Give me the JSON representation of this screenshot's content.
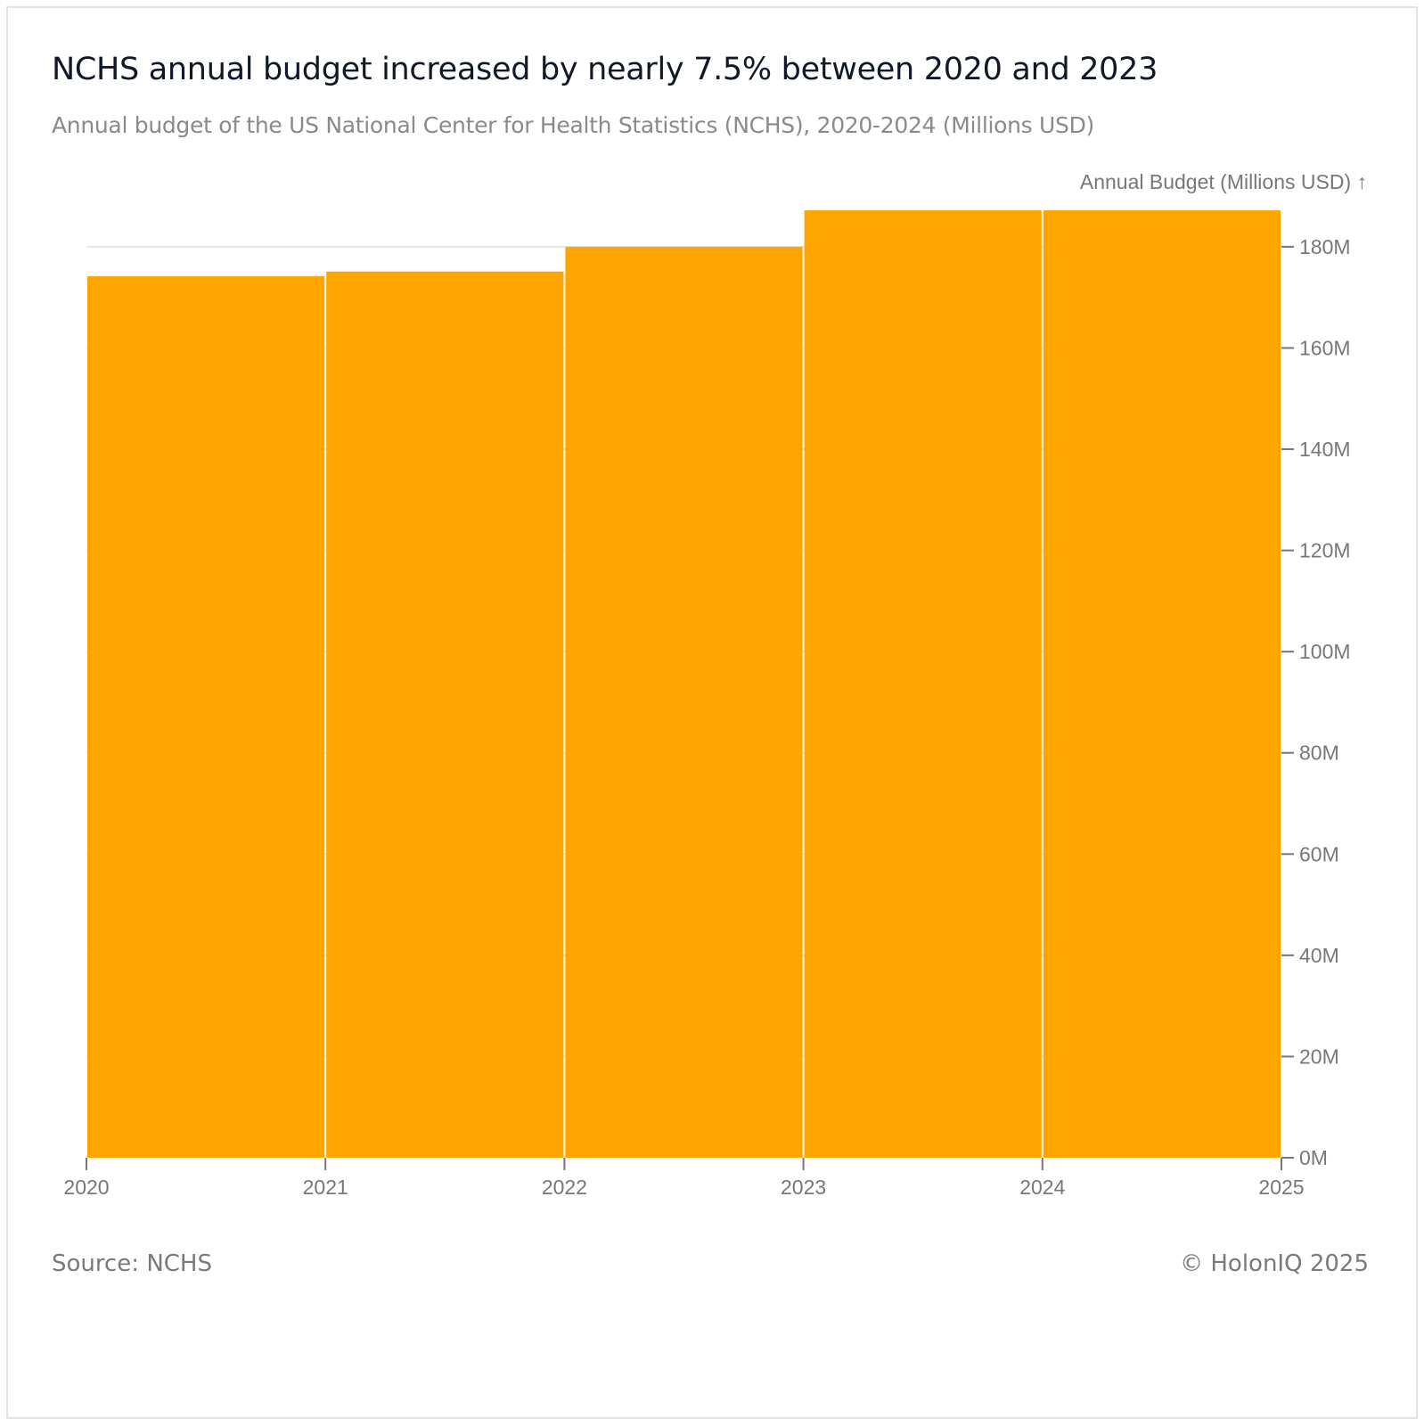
{
  "header": {
    "title": "NCHS annual budget increased by nearly 7.5% between 2020 and 2023",
    "subtitle": "Annual budget of the US National Center for Health Statistics (NCHS), 2020-2024 (Millions USD)"
  },
  "footer": {
    "source": "Source: NCHS",
    "copyright": "© HolonIQ 2025"
  },
  "colors": {
    "bar": "#FFA500",
    "grid": "#e6e6e6",
    "axis": "#777777"
  },
  "chart_data": {
    "type": "bar",
    "title": "NCHS annual budget increased by nearly 7.5% between 2020 and 2023",
    "subtitle": "Annual budget of the US National Center for Health Statistics (NCHS), 2020-2024 (Millions USD)",
    "xlabel": "",
    "ylabel": "Annual Budget (Millions USD) ↑",
    "categories": [
      "2020",
      "2021",
      "2022",
      "2023",
      "2024"
    ],
    "x_bins": [
      2020,
      2021,
      2022,
      2023,
      2024,
      2025
    ],
    "values": [
      174.2,
      175.1,
      180.0,
      187.2,
      187.2
    ],
    "ylim": [
      0,
      187.2
    ],
    "xlim": [
      2020,
      2025
    ],
    "x_ticks": [
      "2020",
      "2021",
      "2022",
      "2023",
      "2024",
      "2025"
    ],
    "y_ticks": [
      0,
      20,
      40,
      60,
      80,
      100,
      120,
      140,
      160,
      180
    ],
    "y_tick_labels": [
      "0M",
      "20M",
      "40M",
      "60M",
      "80M",
      "100M",
      "120M",
      "140M",
      "160M",
      "180M"
    ],
    "y_axis_position": "right",
    "grid": true,
    "legend": "none"
  }
}
